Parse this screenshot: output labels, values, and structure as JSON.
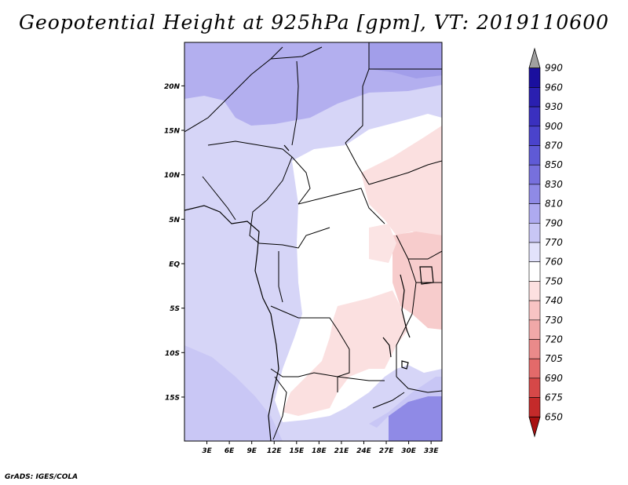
{
  "title": "Geopotential Height at 925hPa [gpm], VT: 2019110600",
  "credit": "GrADS: IGES/COLA",
  "map": {
    "lat_labels": [
      {
        "lat": 20,
        "label": "20N"
      },
      {
        "lat": 15,
        "label": "15N"
      },
      {
        "lat": 10,
        "label": "10N"
      },
      {
        "lat": 5,
        "label": "5N"
      },
      {
        "lat": 0,
        "label": "EQ"
      },
      {
        "lat": -5,
        "label": "5S"
      },
      {
        "lat": -10,
        "label": "10S"
      },
      {
        "lat": -15,
        "label": "15S"
      }
    ],
    "lon_labels": [
      {
        "lon": 3,
        "label": "3E"
      },
      {
        "lon": 6,
        "label": "6E"
      },
      {
        "lon": 9,
        "label": "9E"
      },
      {
        "lon": 12,
        "label": "12E"
      },
      {
        "lon": 15,
        "label": "15E"
      },
      {
        "lon": 18,
        "label": "18E"
      },
      {
        "lon": 21,
        "label": "21E"
      },
      {
        "lon": 24,
        "label": "24E"
      },
      {
        "lon": 27,
        "label": "27E"
      },
      {
        "lon": 30,
        "label": "30E"
      },
      {
        "lon": 33,
        "label": "33E"
      }
    ]
  },
  "colorbar": {
    "levels": [
      "990",
      "960",
      "930",
      "900",
      "870",
      "850",
      "830",
      "810",
      "790",
      "770",
      "760",
      "750",
      "740",
      "730",
      "720",
      "705",
      "690",
      "675",
      "650"
    ],
    "colors": [
      "#a0a0a0",
      "#1a0f9e",
      "#2a1fb0",
      "#3a30bf",
      "#4a43cc",
      "#5f5ad6",
      "#7770dd",
      "#8f8ae6",
      "#aeaaf0",
      "#c8c6f5",
      "#e2e2fb",
      "#ffffff",
      "#fde0e0",
      "#f8c4c4",
      "#f1a8a8",
      "#ea8a8a",
      "#e36a6a",
      "#d64848",
      "#c42a2a",
      "#a81010"
    ]
  }
}
